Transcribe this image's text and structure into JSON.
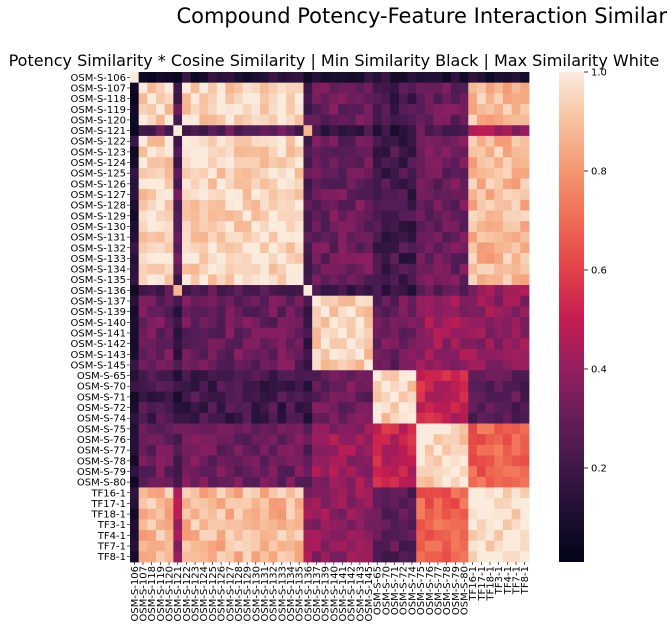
{
  "chart_data": {
    "type": "heatmap",
    "title": "Compound Potency-Feature Interaction Similarity",
    "subtitle": "Potency Similarity * Cosine Similarity | Min Similarity Black | Max Similarity White",
    "labels": [
      "OSM-S-106",
      "OSM-S-107",
      "OSM-S-118",
      "OSM-S-119",
      "OSM-S-120",
      "OSM-S-121",
      "OSM-S-122",
      "OSM-S-123",
      "OSM-S-124",
      "OSM-S-125",
      "OSM-S-126",
      "OSM-S-127",
      "OSM-S-128",
      "OSM-S-129",
      "OSM-S-130",
      "OSM-S-131",
      "OSM-S-132",
      "OSM-S-133",
      "OSM-S-134",
      "OSM-S-135",
      "OSM-S-136",
      "OSM-S-137",
      "OSM-S-139",
      "OSM-S-140",
      "OSM-S-141",
      "OSM-S-142",
      "OSM-S-143",
      "OSM-S-145",
      "OSM-S-65",
      "OSM-S-70",
      "OSM-S-71",
      "OSM-S-72",
      "OSM-S-74",
      "OSM-S-75",
      "OSM-S-76",
      "OSM-S-77",
      "OSM-S-78",
      "OSM-S-79",
      "OSM-S-80",
      "TF16-1",
      "TF17-1",
      "TF18-1",
      "TF3-1",
      "TF4-1",
      "TF7-1",
      "TF8-1"
    ],
    "value_range": [
      0.0,
      1.0
    ],
    "colorbar_ticks": [
      0.2,
      0.4,
      0.6,
      0.8,
      1.0
    ],
    "colorscale": "rocket (black to white)",
    "group_affinity": [
      [
        0.3,
        0.1,
        0.1,
        0.1,
        0.1,
        0.1,
        0.1
      ],
      [
        0.1,
        0.95,
        0.25,
        0.3,
        0.2,
        0.3,
        0.88
      ],
      [
        0.1,
        0.25,
        0.95,
        0.2,
        0.15,
        0.25,
        0.4
      ],
      [
        0.1,
        0.3,
        0.2,
        0.92,
        0.3,
        0.4,
        0.38
      ],
      [
        0.1,
        0.2,
        0.15,
        0.3,
        0.95,
        0.5,
        0.25
      ],
      [
        0.1,
        0.3,
        0.25,
        0.4,
        0.5,
        0.95,
        0.68
      ],
      [
        0.1,
        0.88,
        0.4,
        0.38,
        0.25,
        0.68,
        0.96
      ]
    ],
    "group_of": [
      0,
      1,
      1,
      1,
      1,
      2,
      1,
      1,
      1,
      1,
      1,
      1,
      1,
      1,
      1,
      1,
      1,
      1,
      1,
      1,
      2,
      3,
      3,
      3,
      3,
      3,
      3,
      3,
      4,
      4,
      4,
      4,
      4,
      5,
      5,
      5,
      5,
      5,
      5,
      6,
      6,
      6,
      6,
      6,
      6,
      6
    ]
  }
}
